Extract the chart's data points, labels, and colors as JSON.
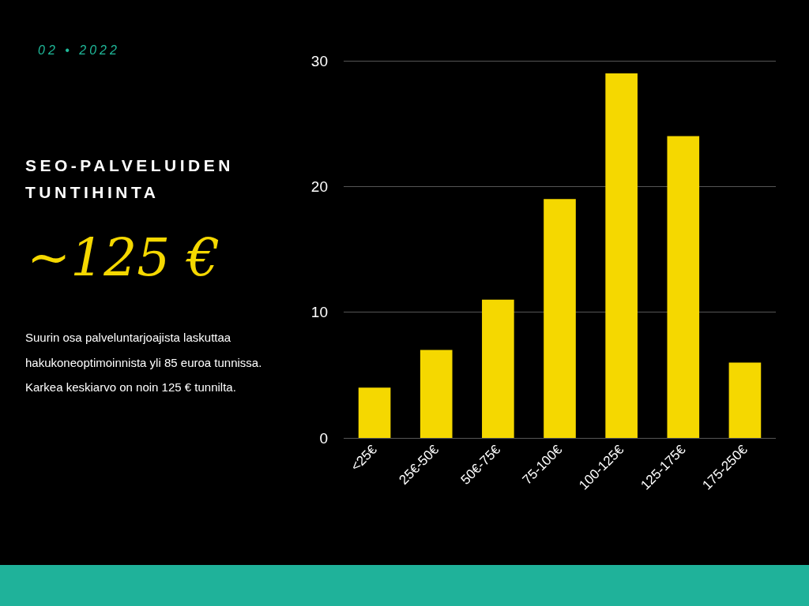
{
  "chart_data": {
    "type": "bar",
    "title": "SEO-PALVELUIDEN TUNTIHINTA",
    "subtitle": "02 • 2022",
    "annotations": [
      "~125 €",
      "Suurin osa palveluntarjoajista laskuttaa hakukoneoptimoinnista yli 85 euroa tunnissa. Karkea keskiarvo on noin 125 € tunnilta."
    ],
    "categories": [
      "<25€",
      "25€-50€",
      "50€-75€",
      "75-100€",
      "100-125€",
      "125-175€",
      "175-250€"
    ],
    "values": [
      4,
      7,
      11,
      19,
      29,
      24,
      6
    ],
    "color": "#f5d800",
    "ylim": [
      0,
      30
    ],
    "yticks": [
      0,
      10,
      20,
      30
    ],
    "grid": "y"
  }
}
